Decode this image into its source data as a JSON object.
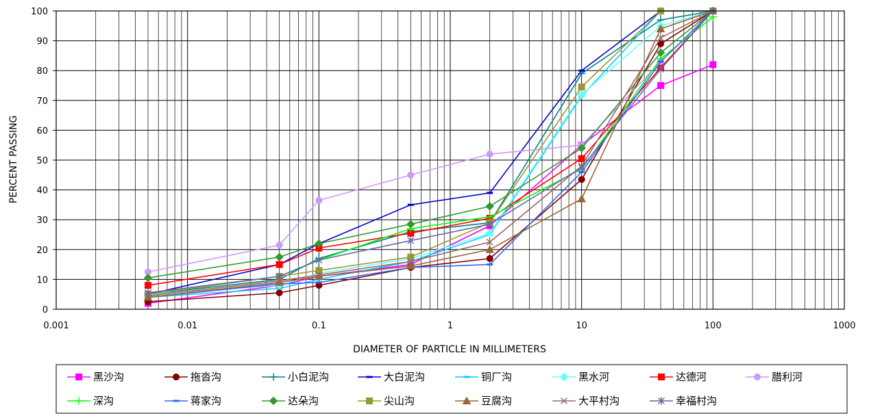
{
  "chart_data": {
    "type": "line",
    "title": "",
    "xlabel": "DIAMETER OF PARTICLE IN MILLIMETERS",
    "ylabel": "PERCENT PASSING",
    "x_scale": "log",
    "xlim": [
      0.001,
      1000
    ],
    "ylim": [
      0,
      100
    ],
    "x_ticks": [
      0.001,
      0.01,
      0.1,
      1,
      10,
      100,
      1000
    ],
    "x_tick_labels": [
      "0.001",
      "0.01",
      "0.1",
      "1",
      "10",
      "100",
      "1000"
    ],
    "y_ticks": [
      0,
      10,
      20,
      30,
      40,
      50,
      60,
      70,
      80,
      90,
      100
    ],
    "y_tick_labels": [
      "0",
      "10",
      "20",
      "30",
      "40",
      "50",
      "60",
      "70",
      "80",
      "90",
      "100"
    ],
    "grid": true,
    "legend_position": "bottom",
    "x": [
      0.005,
      0.05,
      0.1,
      0.5,
      2,
      10,
      40,
      100
    ],
    "series": [
      {
        "name": "黑沙沟",
        "color": "#ff00ff",
        "marker": "square",
        "values": [
          2,
          8,
          11,
          15,
          28,
          55,
          75,
          82
        ]
      },
      {
        "name": "拖沓沟",
        "color": "#800000",
        "marker": "circle",
        "values": [
          2.5,
          5.5,
          8,
          14,
          17,
          43.5,
          89,
          100
        ]
      },
      {
        "name": "小白泥沟",
        "color": "#008080",
        "marker": "plus",
        "values": [
          5,
          10,
          17,
          26,
          29,
          79,
          97,
          100
        ]
      },
      {
        "name": "大白泥沟",
        "color": "#0000cc",
        "marker": "dash",
        "values": [
          5,
          15,
          22,
          35,
          39,
          80,
          100,
          100
        ]
      },
      {
        "name": "铜厂沟",
        "color": "#00ccff",
        "marker": "dash",
        "values": [
          4,
          7,
          10,
          16,
          25,
          71.5,
          100,
          100
        ]
      },
      {
        "name": "黑水河",
        "color": "#66ffff",
        "marker": "diamond",
        "values": [
          5,
          8,
          12,
          17,
          25.5,
          72,
          95,
          100
        ]
      },
      {
        "name": "达德河",
        "color": "#ff0000",
        "marker": "square",
        "values": [
          8,
          15,
          20.5,
          25.5,
          30.5,
          50.5,
          81,
          100
        ]
      },
      {
        "name": "腊利河",
        "color": "#cc99ff",
        "marker": "circle",
        "values": [
          12.5,
          21.5,
          36.5,
          45,
          52,
          55,
          83,
          100
        ]
      },
      {
        "name": "深沟",
        "color": "#00ff00",
        "marker": "plus",
        "values": [
          5,
          11,
          16.5,
          27,
          31,
          47,
          84,
          98
        ]
      },
      {
        "name": "蒋家沟",
        "color": "#3366ff",
        "marker": "dash",
        "values": [
          4,
          8.5,
          9,
          14,
          15,
          46,
          83,
          100
        ]
      },
      {
        "name": "达朵沟",
        "color": "#339933",
        "marker": "diamond",
        "values": [
          10.5,
          17.5,
          22,
          28.5,
          34.5,
          54,
          86,
          100
        ]
      },
      {
        "name": "尖山沟",
        "color": "#999933",
        "marker": "square",
        "values": [
          5,
          11,
          13,
          17.5,
          29,
          74.5,
          100,
          100
        ]
      },
      {
        "name": "豆腐沟",
        "color": "#996633",
        "marker": "triangle",
        "values": [
          4,
          9,
          11,
          14.5,
          20,
          37,
          94,
          100
        ]
      },
      {
        "name": "大平村沟",
        "color": "#996666",
        "marker": "x",
        "values": [
          4.5,
          9.5,
          11.5,
          16,
          22.5,
          48,
          91,
          100
        ]
      },
      {
        "name": "幸福村沟",
        "color": "#6666aa",
        "marker": "star",
        "values": [
          5.5,
          11,
          16.5,
          23,
          28.5,
          47.5,
          80.5,
          100
        ]
      }
    ]
  }
}
